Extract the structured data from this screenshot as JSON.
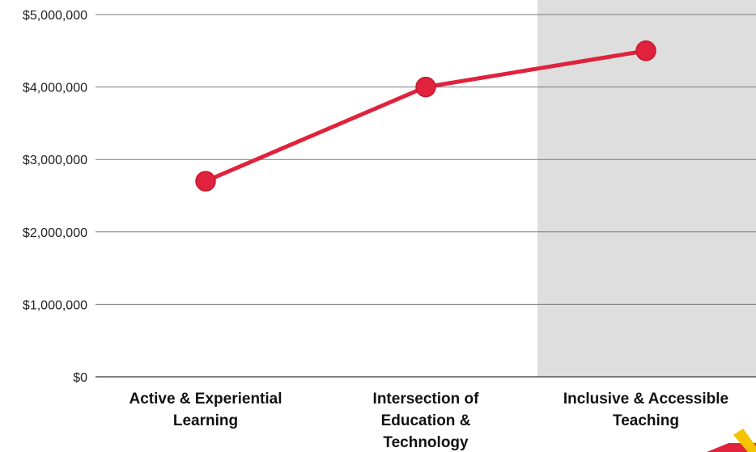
{
  "chart_data": {
    "type": "line",
    "categories": [
      [
        "Active & Experiential",
        "Learning"
      ],
      [
        "Intersection of",
        "Education &",
        "Technology"
      ],
      [
        "Inclusive & Accessible",
        "Teaching"
      ]
    ],
    "values": [
      2700000,
      4000000,
      4500000
    ],
    "ylim": [
      0,
      5000000
    ],
    "yticks": [
      0,
      1000000,
      2000000,
      3000000,
      4000000,
      5000000
    ],
    "ytick_labels": [
      "$0",
      "$1,000,000",
      "$2,000,000",
      "$3,000,000",
      "$4,000,000",
      "$5,000,000"
    ],
    "highlighted_category": 2,
    "grid": true,
    "legend": "none",
    "colors": {
      "line": "#e0223c",
      "marker": "#e0223c",
      "marker_stroke": "#c41a30",
      "highlight_band": "#dedede",
      "grid": "#7a7a7a",
      "axis": "#555555",
      "logo_red": "#e0223c",
      "logo_yellow": "#f5c400"
    }
  }
}
